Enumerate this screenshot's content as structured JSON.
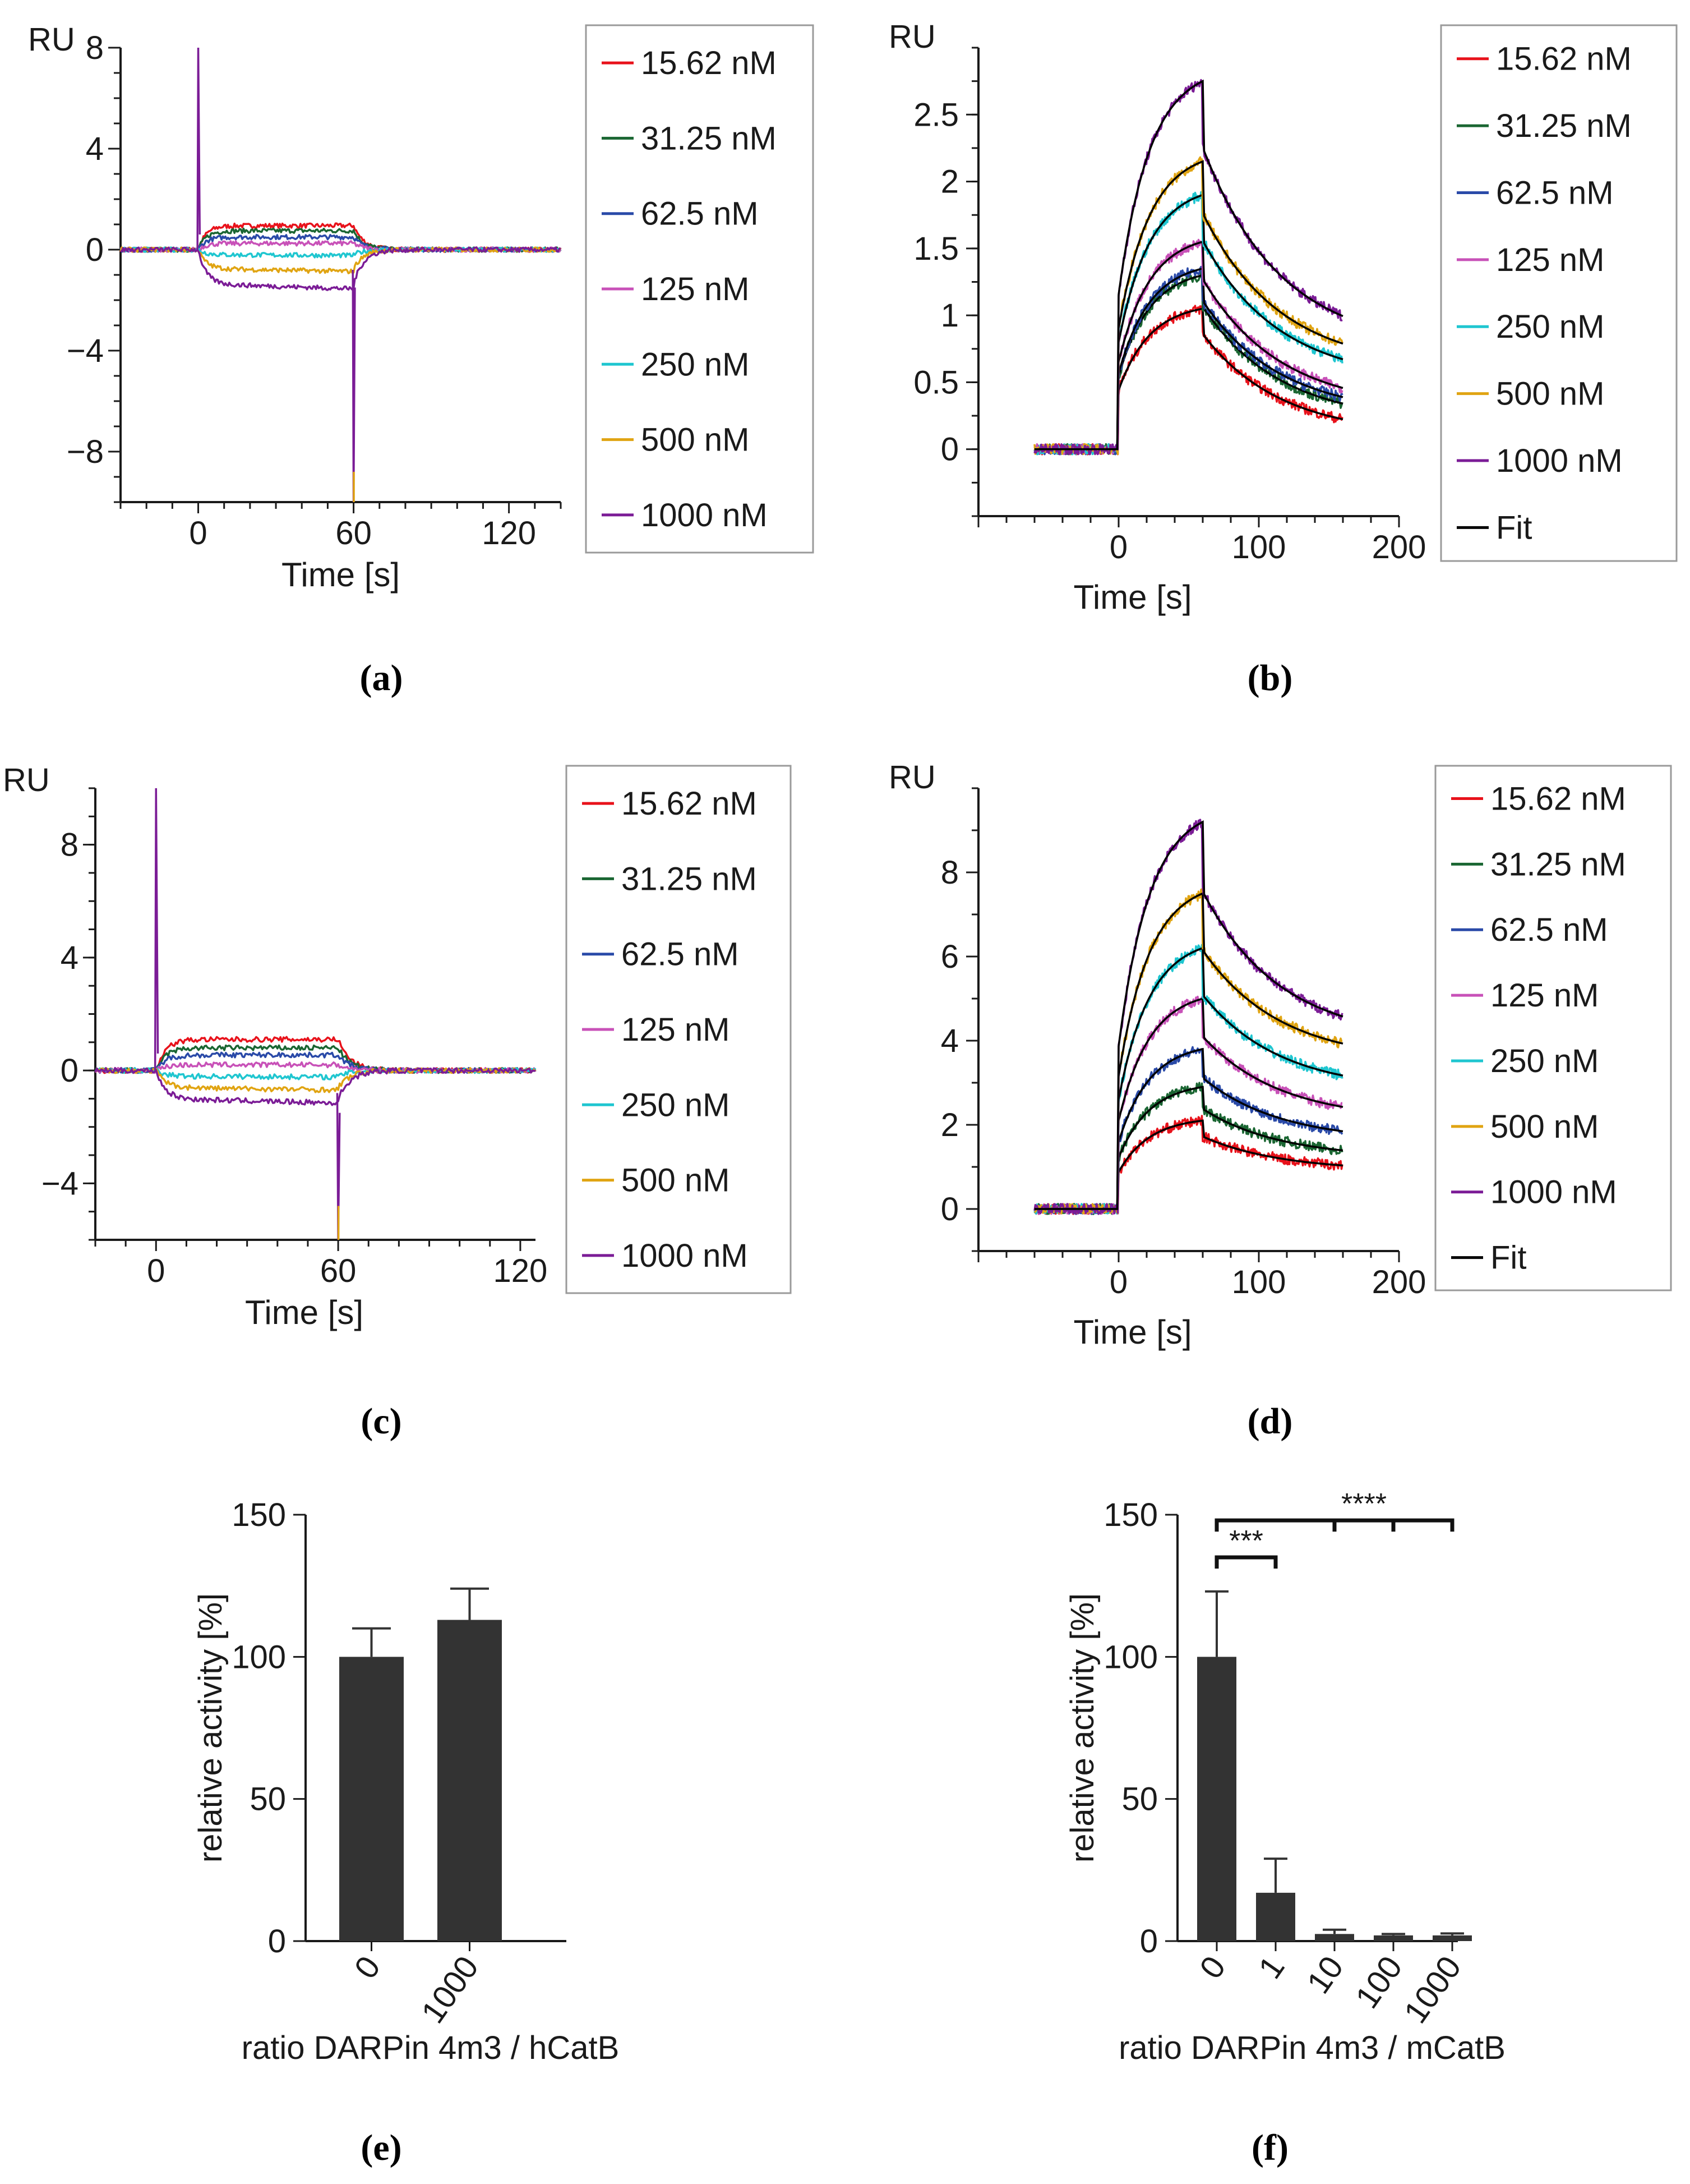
{
  "colors": {
    "series": [
      "#e8121b",
      "#1a6632",
      "#2a4aa8",
      "#c851b8",
      "#1fc6d0",
      "#e0a412",
      "#7b1c96"
    ],
    "fit": "#000000",
    "bar": "#333333",
    "axis": "#1a1a1a"
  },
  "chart_data": [
    {
      "type": "line",
      "panel": "(a)",
      "ylabel": "RU",
      "xlabel": "Time [s]",
      "xlim": [
        -30,
        140
      ],
      "ylim": [
        -10,
        8
      ],
      "xticks": [
        "0",
        "60",
        "120"
      ],
      "yticks": [
        "8",
        "4",
        "0",
        "−4",
        "−8"
      ],
      "injection": [
        0,
        60
      ],
      "spike": {
        "start_peak": 8,
        "end_low": -10
      },
      "legend": [
        "15.62 nM",
        "31.25 nM",
        "62.5 nM",
        "125 nM",
        "250 nM",
        "500 nM",
        "1000 nM"
      ],
      "series": [
        {
          "name": "15.62 nM",
          "plateau": 0.95
        },
        {
          "name": "31.25 nM",
          "plateau": 0.75
        },
        {
          "name": "62.5 nM",
          "plateau": 0.5
        },
        {
          "name": "125 nM",
          "plateau": 0.25
        },
        {
          "name": "250 nM",
          "plateau": -0.2
        },
        {
          "name": "500 nM",
          "plateau": -0.75
        },
        {
          "name": "1000 nM",
          "plateau": -1.35
        }
      ]
    },
    {
      "type": "line",
      "panel": "(b)",
      "ylabel": "RU",
      "xlabel": "Time [s]",
      "xlim": [
        -100,
        200
      ],
      "ylim": [
        -0.5,
        3.0
      ],
      "xticks": [
        "0",
        "100",
        "200"
      ],
      "yticks": [
        "2.5",
        "2",
        "1.5",
        "1",
        "0.5",
        "0"
      ],
      "legend": [
        "15.62 nM",
        "31.25 nM",
        "62.5 nM",
        "125 nM",
        "250 nM",
        "500 nM",
        "1000 nM",
        "Fit"
      ],
      "series": [
        {
          "name": "15.62 nM",
          "peak": 1.05,
          "end": 0.1
        },
        {
          "name": "31.25 nM",
          "peak": 1.3,
          "end": 0.2
        },
        {
          "name": "62.5 nM",
          "peak": 1.35,
          "end": 0.25
        },
        {
          "name": "125 nM",
          "peak": 1.55,
          "end": 0.3
        },
        {
          "name": "250 nM",
          "peak": 1.9,
          "end": 0.5
        },
        {
          "name": "500 nM",
          "peak": 2.15,
          "end": 0.6
        },
        {
          "name": "1000 nM",
          "peak": 2.75,
          "end": 0.75
        }
      ]
    },
    {
      "type": "line",
      "panel": "(c)",
      "ylabel": "RU",
      "xlabel": "Time [s]",
      "xlim": [
        -20,
        125
      ],
      "ylim": [
        -6,
        10
      ],
      "xticks": [
        "0",
        "60",
        "120"
      ],
      "yticks": [
        "8",
        "4",
        "0",
        "−4"
      ],
      "injection": [
        0,
        60
      ],
      "spike": {
        "start_peak": 10,
        "end_low": -6
      },
      "legend": [
        "15.62 nM",
        "31.25 nM",
        "62.5 nM",
        "125 nM",
        "250 nM",
        "500 nM",
        "1000 nM"
      ],
      "series": [
        {
          "name": "15.62 nM",
          "plateau": 1.1
        },
        {
          "name": "31.25 nM",
          "plateau": 0.8
        },
        {
          "name": "62.5 nM",
          "plateau": 0.55
        },
        {
          "name": "125 nM",
          "plateau": 0.2
        },
        {
          "name": "250 nM",
          "plateau": -0.2
        },
        {
          "name": "500 nM",
          "plateau": -0.6
        },
        {
          "name": "1000 nM",
          "plateau": -1.0
        }
      ]
    },
    {
      "type": "line",
      "panel": "(d)",
      "ylabel": "RU",
      "xlabel": "Time [s]",
      "xlim": [
        -100,
        200
      ],
      "ylim": [
        -1,
        10
      ],
      "xticks": [
        "0",
        "100",
        "200"
      ],
      "yticks": [
        "8",
        "6",
        "4",
        "2",
        "0"
      ],
      "legend": [
        "15.62 nM",
        "31.25 nM",
        "62.5 nM",
        "125 nM",
        "250 nM",
        "500 nM",
        "1000 nM",
        "Fit"
      ],
      "series": [
        {
          "name": "15.62 nM",
          "peak": 2.1,
          "end": 0.9
        },
        {
          "name": "31.25 nM",
          "peak": 2.9,
          "end": 1.2
        },
        {
          "name": "62.5 nM",
          "peak": 3.8,
          "end": 1.6
        },
        {
          "name": "125 nM",
          "peak": 5.0,
          "end": 2.1
        },
        {
          "name": "250 nM",
          "peak": 6.2,
          "end": 2.8
        },
        {
          "name": "500 nM",
          "peak": 7.5,
          "end": 3.5
        },
        {
          "name": "1000 nM",
          "peak": 9.2,
          "end": 4.0
        }
      ]
    },
    {
      "type": "bar",
      "panel": "(e)",
      "ylabel": "relative activity [%]",
      "xlabel": "ratio DARPin 4m3 / hCatB",
      "ylim": [
        0,
        150
      ],
      "yticks": [
        "150",
        "100",
        "50",
        "0"
      ],
      "categories": [
        "0",
        "1000"
      ],
      "values": [
        100,
        113
      ],
      "errors": [
        10,
        11
      ]
    },
    {
      "type": "bar",
      "panel": "(f)",
      "ylabel": "relative activity [%]",
      "xlabel": "ratio DARPin 4m3 / mCatB",
      "ylim": [
        0,
        150
      ],
      "yticks": [
        "150",
        "100",
        "50",
        "0"
      ],
      "categories": [
        "0",
        "1",
        "10",
        "100",
        "1000"
      ],
      "values": [
        100,
        17,
        2.5,
        2,
        2
      ],
      "errors": [
        23,
        12,
        1.5,
        0.5,
        0.7
      ],
      "significance": [
        {
          "label": "***",
          "from": 0,
          "to": 1
        },
        {
          "label": "****",
          "from": 0,
          "to": 4
        }
      ]
    }
  ]
}
